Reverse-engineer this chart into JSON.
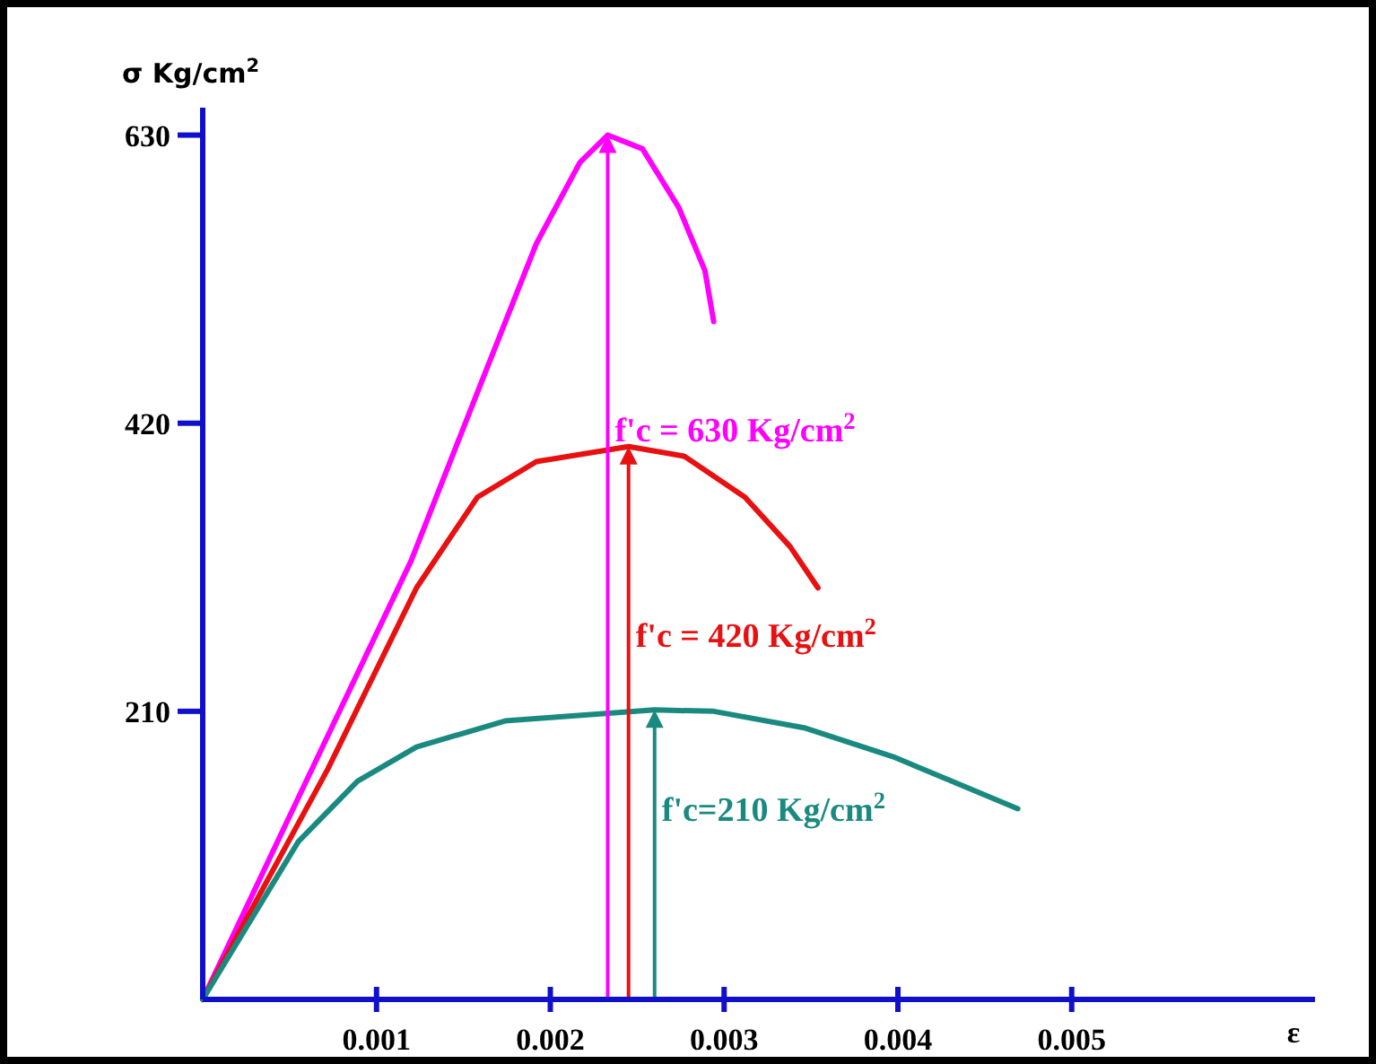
{
  "chart_data": {
    "type": "line",
    "xlabel": "ε",
    "ylabel": "σ Kg/cm$^{2}$",
    "xlim": [
      0,
      0.0064
    ],
    "ylim": [
      0,
      650
    ],
    "xticks": [
      0.001,
      0.002,
      0.003,
      0.004,
      0.005
    ],
    "yticks": [
      210,
      420,
      630
    ],
    "grid": false,
    "marker": "none",
    "line_style": "solid",
    "series": [
      {
        "color": "#ff00ff",
        "x": [
          0,
          0.00058,
          0.0012,
          0.00161,
          0.00192,
          0.00217,
          0.00233,
          0.00253,
          0.00274,
          0.00289,
          0.00294
        ],
        "values": [
          0,
          155,
          320,
          452,
          551,
          610,
          630,
          620,
          577,
          531,
          494
        ]
      },
      {
        "color": "#e81010",
        "x": [
          0,
          0.00072,
          0.00123,
          0.00158,
          0.00192,
          0.00245,
          0.00277,
          0.00312,
          0.00338,
          0.00354
        ],
        "values": [
          0,
          168,
          300,
          366,
          392,
          403,
          396,
          366,
          330,
          300
        ]
      },
      {
        "color": "#1a8a80",
        "x": [
          0,
          0.00055,
          0.00089,
          0.00123,
          0.00174,
          0.0026,
          0.00294,
          0.00346,
          0.00397,
          0.00431,
          0.00469
        ],
        "values": [
          0,
          115,
          159,
          184,
          203,
          211,
          210,
          198,
          177,
          159,
          139
        ]
      }
    ],
    "annotations": [
      "f'c = 630 Kg/cm$^{2}$",
      "f'c = 420 Kg/cm$^{2}$",
      "f'c=210 Kg/cm$^{2}$"
    ]
  }
}
